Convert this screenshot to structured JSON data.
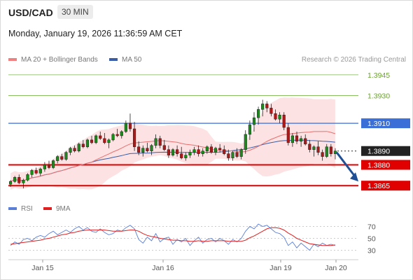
{
  "header": {
    "symbol": "USD/CAD",
    "timeframe": "30 MIN",
    "datetime": "Monday, January 19, 2026 11:36:59 AM CET"
  },
  "legend": {
    "ma20": "MA 20 + Bollinger Bands",
    "ma50": "MA 50",
    "credit": "Research © 2026 Trading Central",
    "ma20_color": "#f08080",
    "ma50_color": "#3a5da8"
  },
  "rsi_legend": {
    "rsi": "RSI",
    "ma9": "9MA",
    "rsi_color": "#5b7fd6",
    "ma9_color": "#e02020"
  },
  "chart_data": {
    "type": "candlestick",
    "title": "USD/CAD",
    "timeframe": "30 MIN",
    "x_ticks": [
      "Jan 15",
      "Jan 16",
      "Jan 19",
      "Jan 20"
    ],
    "ylim": [
      1.3856,
      1.3951
    ],
    "levels": [
      {
        "value": 1.3945,
        "label": "1.3945",
        "style": "resistance",
        "color": "#7ab648"
      },
      {
        "value": 1.393,
        "label": "1.3930",
        "style": "resistance",
        "color": "#7ab648"
      },
      {
        "value": 1.391,
        "label": "1.3910",
        "style": "pivot",
        "color": "#3a6fd8"
      },
      {
        "value": 1.389,
        "label": "1.3890",
        "style": "last",
        "color": "#222222"
      },
      {
        "value": 1.388,
        "label": "1.3880",
        "style": "support",
        "color": "#e00000"
      },
      {
        "value": 1.3865,
        "label": "1.3865",
        "style": "support",
        "color": "#e00000"
      }
    ],
    "last_price": 1.389,
    "forecast_arrow": {
      "from": 1.3889,
      "to": 1.3868,
      "direction": "down"
    },
    "candles": [
      [
        1.3866,
        1.3869,
        1.3864,
        1.3868
      ],
      [
        1.3868,
        1.3872,
        1.3867,
        1.3871
      ],
      [
        1.3871,
        1.3873,
        1.3866,
        1.3867
      ],
      [
        1.3867,
        1.387,
        1.3863,
        1.3869
      ],
      [
        1.3869,
        1.3874,
        1.3868,
        1.3873
      ],
      [
        1.3873,
        1.3877,
        1.3871,
        1.3876
      ],
      [
        1.3876,
        1.3878,
        1.3873,
        1.3874
      ],
      [
        1.3874,
        1.3878,
        1.3872,
        1.3877
      ],
      [
        1.3877,
        1.3882,
        1.3875,
        1.388
      ],
      [
        1.388,
        1.3883,
        1.3877,
        1.3878
      ],
      [
        1.3878,
        1.3884,
        1.3877,
        1.3883
      ],
      [
        1.3883,
        1.3887,
        1.3881,
        1.3886
      ],
      [
        1.3886,
        1.3888,
        1.3883,
        1.3884
      ],
      [
        1.3884,
        1.389,
        1.3883,
        1.3889
      ],
      [
        1.3889,
        1.3893,
        1.3887,
        1.3892
      ],
      [
        1.3892,
        1.3894,
        1.3889,
        1.389
      ],
      [
        1.389,
        1.3896,
        1.3889,
        1.3895
      ],
      [
        1.3895,
        1.3898,
        1.3892,
        1.3893
      ],
      [
        1.3893,
        1.3899,
        1.3892,
        1.3898
      ],
      [
        1.3898,
        1.3901,
        1.3895,
        1.3896
      ],
      [
        1.3896,
        1.3902,
        1.3895,
        1.3901
      ],
      [
        1.3901,
        1.3904,
        1.3898,
        1.3899
      ],
      [
        1.3899,
        1.3903,
        1.3895,
        1.3896
      ],
      [
        1.3896,
        1.3899,
        1.3892,
        1.3898
      ],
      [
        1.3898,
        1.3903,
        1.3897,
        1.3902
      ],
      [
        1.3902,
        1.3906,
        1.39,
        1.3901
      ],
      [
        1.3901,
        1.3905,
        1.3899,
        1.3904
      ],
      [
        1.3904,
        1.3912,
        1.3903,
        1.391
      ],
      [
        1.391,
        1.3917,
        1.3904,
        1.3906
      ],
      [
        1.3906,
        1.3911,
        1.389,
        1.3893
      ],
      [
        1.3893,
        1.3897,
        1.3887,
        1.3889
      ],
      [
        1.3889,
        1.3894,
        1.3886,
        1.3892
      ],
      [
        1.3892,
        1.3896,
        1.3889,
        1.389
      ],
      [
        1.389,
        1.3895,
        1.3887,
        1.3894
      ],
      [
        1.3894,
        1.3902,
        1.3892,
        1.3899
      ],
      [
        1.3899,
        1.3901,
        1.3892,
        1.3894
      ],
      [
        1.3894,
        1.3898,
        1.389,
        1.3891
      ],
      [
        1.3891,
        1.3894,
        1.3885,
        1.3887
      ],
      [
        1.3887,
        1.3892,
        1.3886,
        1.3891
      ],
      [
        1.3891,
        1.3894,
        1.3886,
        1.3888
      ],
      [
        1.3888,
        1.3893,
        1.3884,
        1.3885
      ],
      [
        1.3885,
        1.3889,
        1.3883,
        1.3887
      ],
      [
        1.3887,
        1.3891,
        1.3885,
        1.3889
      ],
      [
        1.3889,
        1.3893,
        1.3887,
        1.3891
      ],
      [
        1.3891,
        1.3894,
        1.3886,
        1.3888
      ],
      [
        1.3888,
        1.3892,
        1.3886,
        1.389
      ],
      [
        1.389,
        1.3894,
        1.3888,
        1.3893
      ],
      [
        1.3893,
        1.3895,
        1.3888,
        1.3889
      ],
      [
        1.3889,
        1.3893,
        1.3887,
        1.3892
      ],
      [
        1.3892,
        1.3895,
        1.3889,
        1.3891
      ],
      [
        1.3891,
        1.3894,
        1.3887,
        1.3888
      ],
      [
        1.3888,
        1.3891,
        1.3883,
        1.3885
      ],
      [
        1.3885,
        1.389,
        1.3883,
        1.3889
      ],
      [
        1.3889,
        1.3892,
        1.3885,
        1.3886
      ],
      [
        1.3886,
        1.3892,
        1.3884,
        1.3891
      ],
      [
        1.3891,
        1.3905,
        1.3888,
        1.3902
      ],
      [
        1.3902,
        1.3912,
        1.3898,
        1.3909
      ],
      [
        1.3909,
        1.3918,
        1.3904,
        1.3914
      ],
      [
        1.3914,
        1.3922,
        1.3909,
        1.392
      ],
      [
        1.392,
        1.3927,
        1.3915,
        1.3924
      ],
      [
        1.3924,
        1.3926,
        1.3918,
        1.3921
      ],
      [
        1.3921,
        1.3924,
        1.3915,
        1.3917
      ],
      [
        1.3917,
        1.392,
        1.3912,
        1.3913
      ],
      [
        1.3913,
        1.3918,
        1.391,
        1.3916
      ],
      [
        1.3916,
        1.3918,
        1.3905,
        1.3907
      ],
      [
        1.3907,
        1.391,
        1.3894,
        1.3896
      ],
      [
        1.3896,
        1.3903,
        1.3893,
        1.3901
      ],
      [
        1.3901,
        1.3904,
        1.3895,
        1.3897
      ],
      [
        1.3897,
        1.3901,
        1.3893,
        1.3899
      ],
      [
        1.3899,
        1.3902,
        1.3894,
        1.3895
      ],
      [
        1.3895,
        1.3898,
        1.3889,
        1.3891
      ],
      [
        1.3891,
        1.3894,
        1.3886,
        1.3893
      ],
      [
        1.3893,
        1.3897,
        1.3887,
        1.3889
      ],
      [
        1.3889,
        1.3891,
        1.3883,
        1.3886
      ],
      [
        1.3886,
        1.3895,
        1.3885,
        1.3893
      ],
      [
        1.3893,
        1.3895,
        1.3886,
        1.3888
      ],
      [
        1.3888,
        1.3892,
        1.3884,
        1.389
      ]
    ]
  },
  "rsi_chart": {
    "ticks": [
      "70",
      "50",
      "30"
    ],
    "ylim": [
      20,
      80
    ],
    "rsi": [
      38,
      44,
      40,
      48,
      50,
      46,
      52,
      55,
      52,
      58,
      62,
      56,
      60,
      64,
      60,
      66,
      70,
      64,
      68,
      62,
      60,
      66,
      60,
      56,
      58,
      64,
      62,
      68,
      72,
      66,
      48,
      42,
      52,
      46,
      58,
      44,
      50,
      52,
      40,
      48,
      44,
      50,
      38,
      46,
      52,
      42,
      48,
      50,
      44,
      50,
      46,
      40,
      48,
      44,
      50,
      62,
      70,
      66,
      74,
      70,
      72,
      66,
      60,
      58,
      52,
      38,
      44,
      34,
      42,
      36,
      30,
      40,
      36,
      42,
      38,
      40,
      38
    ],
    "ma9": [
      40,
      41,
      42,
      43,
      44,
      45,
      46,
      47,
      49,
      50,
      52,
      54,
      56,
      57,
      59,
      60,
      62,
      63,
      64,
      64,
      64,
      64,
      64,
      63,
      62,
      62,
      62,
      63,
      64,
      64,
      62,
      58,
      55,
      53,
      52,
      50,
      49,
      48,
      47,
      47,
      46,
      46,
      45,
      45,
      46,
      45,
      45,
      46,
      46,
      46,
      46,
      45,
      45,
      45,
      45,
      47,
      51,
      54,
      58,
      62,
      66,
      68,
      68,
      67,
      64,
      59,
      55,
      50,
      47,
      44,
      41,
      40,
      39,
      38,
      38,
      38,
      39
    ]
  }
}
